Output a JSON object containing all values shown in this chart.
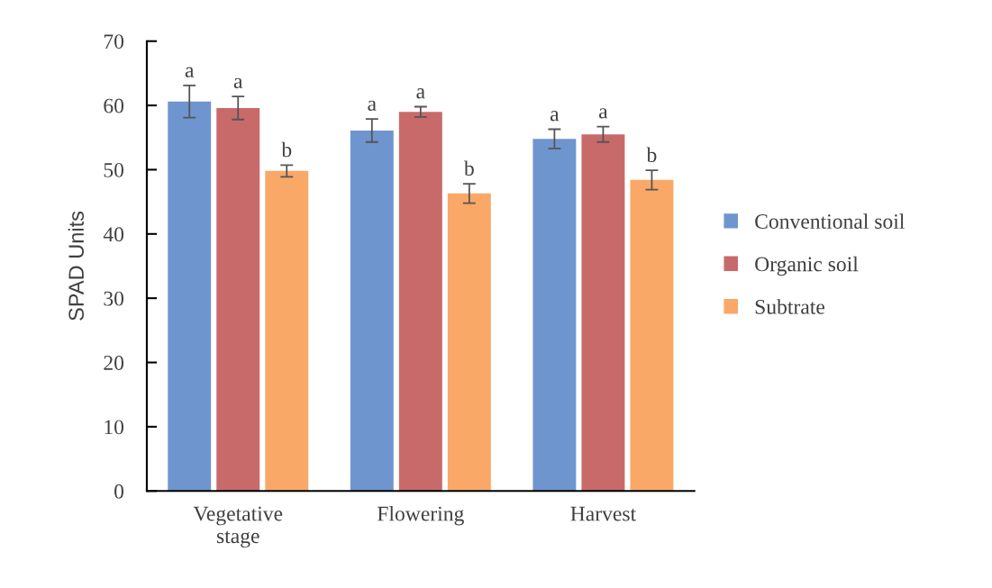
{
  "chart_data": {
    "type": "bar",
    "ylabel": "SPAD Units",
    "categories": [
      "Vegetative\nstage",
      "Flowering",
      "Harvest"
    ],
    "series": [
      {
        "name": "Conventional soil",
        "color": "#6f95cf",
        "values": [
          60.6,
          56.1,
          54.8
        ],
        "errors": [
          2.5,
          1.8,
          1.5
        ],
        "value_labels": [
          "a",
          "a",
          "a"
        ]
      },
      {
        "name": "Organic soil",
        "color": "#c96a6a",
        "values": [
          59.6,
          59.0,
          55.5
        ],
        "errors": [
          1.8,
          0.8,
          1.2
        ],
        "value_labels": [
          "a",
          "a",
          "a"
        ]
      },
      {
        "name": "Subtrate",
        "color": "#f9a868",
        "values": [
          49.8,
          46.3,
          48.4
        ],
        "errors": [
          0.9,
          1.5,
          1.5
        ],
        "value_labels": [
          "b",
          "b",
          "b"
        ]
      }
    ],
    "ylim": [
      0,
      70
    ],
    "yticks": [
      0,
      10,
      20,
      30,
      40,
      50,
      60,
      70
    ],
    "grid": false,
    "legend": "right"
  }
}
